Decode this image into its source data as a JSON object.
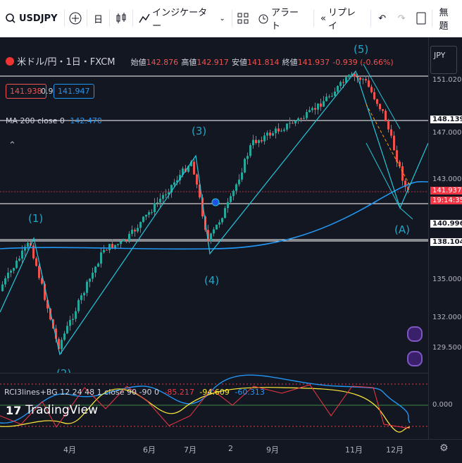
{
  "toolbar": {
    "symbol": "USDJPY",
    "interval": "日",
    "indicators_label": "インジケーター",
    "alert_label": "アラート",
    "replay_label": "リプレイ",
    "save_label": "無題"
  },
  "legend": {
    "title": "米ドル/円・1日・FXCM",
    "open_label": "始値",
    "open": "142.876",
    "high_label": "高値",
    "high": "142.917",
    "low_label": "安値",
    "low": "141.814",
    "close_label": "終値",
    "close": "141.937",
    "change": "-0.939 (-0.66%)",
    "bid": "141.938",
    "spread": "0.9",
    "ask": "141.947",
    "ma_label": "MA 200 close 0",
    "ma_value": "142.470"
  },
  "price_axis": {
    "currency": "JPY",
    "labels": [
      "151.020",
      "148.139",
      "147.000",
      "143.000",
      "141.937",
      "19:14:35",
      "140.996",
      "138.104",
      "135.000",
      "132.000",
      "129.500",
      "0.000"
    ]
  },
  "waves": [
    "(1)",
    "(2)",
    "(3)",
    "(4)",
    "(5)",
    "(A)"
  ],
  "indicator": {
    "name": "RCI3lines+BG 12 24 48 1 close 90 -90 0",
    "v1": "-85.217",
    "v2": "-94.609",
    "v3": "-60.313"
  },
  "time_axis": [
    "4月",
    "6月",
    "7月",
    "2",
    "9月",
    "11月",
    "12月"
  ],
  "brand": "TradingView",
  "colors": {
    "up": "#26a69a",
    "down": "#ef5350",
    "ma": "#2196f3",
    "wave": "#26c6da"
  }
}
